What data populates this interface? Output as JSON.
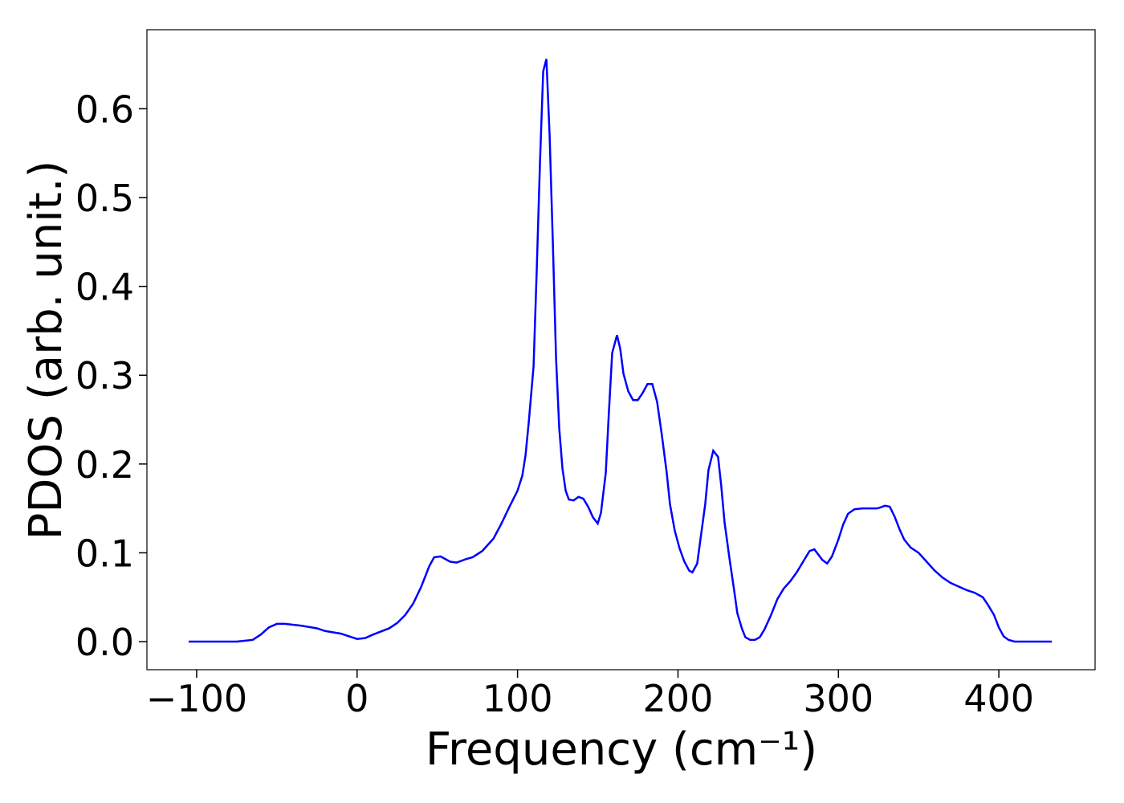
{
  "chart_data": {
    "type": "line",
    "xlabel": "Frequency (cm⁻¹)",
    "ylabel": "PDOS (arb. unit.)",
    "xlim": [
      -131,
      460
    ],
    "ylim": [
      -0.0316,
      0.689
    ],
    "xticks": [
      {
        "value": -100,
        "label": "−100"
      },
      0,
      100,
      200,
      300,
      400
    ],
    "yticks": [
      {
        "value": 0,
        "label": "0.0"
      },
      0.1,
      0.2,
      0.3,
      0.4,
      0.5,
      0.6
    ],
    "grid": false,
    "series": [
      {
        "color": "#0000ff",
        "x": [
          -105,
          -75,
          -65,
          -60,
          -55,
          -50,
          -45,
          -35,
          -25,
          -20,
          -10,
          -5,
          0,
          5,
          10,
          20,
          25,
          30,
          35,
          40,
          45,
          48,
          52,
          58,
          62,
          68,
          72,
          78,
          85,
          90,
          95,
          100,
          103,
          105,
          107,
          110,
          112,
          114,
          116,
          118,
          120,
          122,
          124,
          126,
          128,
          130,
          132,
          135,
          138,
          141,
          144,
          147,
          150,
          152,
          155,
          157,
          159,
          162,
          164,
          166,
          169,
          172,
          175,
          178,
          181,
          184,
          187,
          190,
          193,
          195,
          198,
          201,
          204,
          207,
          209,
          212,
          214,
          217,
          219,
          222,
          225,
          227,
          229,
          232,
          235,
          237,
          240,
          242,
          245,
          248,
          251,
          254,
          258,
          262,
          266,
          270,
          274,
          278,
          282,
          285,
          290,
          293,
          296,
          300,
          303,
          306,
          310,
          315,
          320,
          324,
          326,
          329,
          332,
          335,
          338,
          341,
          345,
          350,
          355,
          360,
          365,
          370,
          375,
          380,
          385,
          390,
          393,
          397,
          400,
          403,
          406,
          410,
          433
        ],
        "values": [
          0,
          0,
          0.002,
          0.008,
          0.016,
          0.02,
          0.02,
          0.018,
          0.015,
          0.012,
          0.009,
          0.006,
          0.003,
          0.004,
          0.008,
          0.015,
          0.021,
          0.03,
          0.043,
          0.062,
          0.085,
          0.095,
          0.096,
          0.09,
          0.089,
          0.093,
          0.095,
          0.102,
          0.116,
          0.133,
          0.152,
          0.17,
          0.187,
          0.21,
          0.247,
          0.31,
          0.42,
          0.54,
          0.642,
          0.656,
          0.57,
          0.45,
          0.32,
          0.24,
          0.195,
          0.17,
          0.16,
          0.159,
          0.163,
          0.161,
          0.152,
          0.14,
          0.133,
          0.145,
          0.19,
          0.26,
          0.325,
          0.345,
          0.33,
          0.302,
          0.282,
          0.272,
          0.272,
          0.28,
          0.29,
          0.29,
          0.27,
          0.232,
          0.19,
          0.155,
          0.125,
          0.105,
          0.09,
          0.08,
          0.078,
          0.088,
          0.115,
          0.155,
          0.193,
          0.215,
          0.208,
          0.175,
          0.135,
          0.095,
          0.058,
          0.032,
          0.014,
          0.005,
          0.002,
          0.002,
          0.005,
          0.014,
          0.03,
          0.048,
          0.06,
          0.068,
          0.078,
          0.09,
          0.102,
          0.104,
          0.092,
          0.088,
          0.096,
          0.115,
          0.132,
          0.144,
          0.149,
          0.15,
          0.15,
          0.15,
          0.151,
          0.153,
          0.152,
          0.141,
          0.127,
          0.115,
          0.106,
          0.1,
          0.09,
          0.08,
          0.072,
          0.066,
          0.062,
          0.058,
          0.055,
          0.05,
          0.042,
          0.03,
          0.016,
          0.006,
          0.002,
          0,
          0
        ]
      }
    ]
  }
}
